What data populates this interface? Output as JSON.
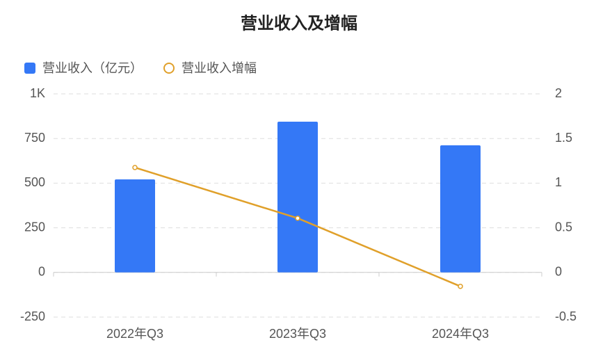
{
  "chart_data": {
    "type": "bar",
    "title": "营业收入及增幅",
    "categories": [
      "2022年Q3",
      "2023年Q3",
      "2024年Q3"
    ],
    "series": [
      {
        "name": "营业收入（亿元）",
        "type": "bar",
        "color": "#3478f6",
        "values": [
          521,
          844,
          712
        ]
      },
      {
        "name": "营业收入增幅",
        "type": "line",
        "axis": "y2",
        "color": "#e0a02a",
        "values": [
          1.175,
          0.607,
          -0.156
        ]
      }
    ],
    "ylim": [
      -250,
      1000
    ],
    "yticks": [
      -250,
      0,
      250,
      500,
      750,
      {
        "value": 1000,
        "label": "1K"
      }
    ],
    "y2lim": [
      -0.5,
      2
    ],
    "y2ticks": [
      -0.5,
      0,
      0.5,
      1,
      1.5,
      2
    ],
    "grid": true,
    "legend": "top-left"
  }
}
